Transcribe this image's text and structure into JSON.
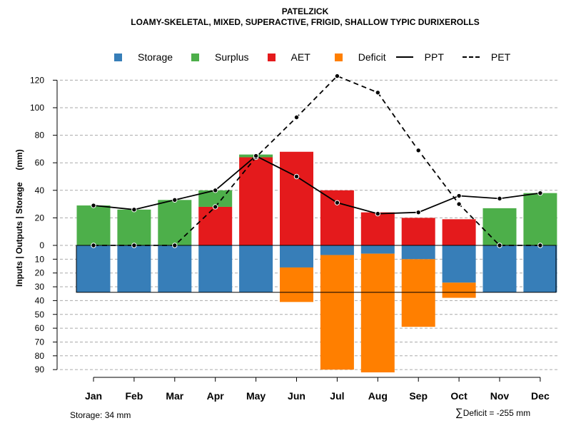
{
  "title": "PATELZICK",
  "subtitle": "LOAMY-SKELETAL, MIXED, SUPERACTIVE, FRIGID, SHALLOW TYPIC DURIXEROLLS",
  "legend": {
    "storage": "Storage",
    "surplus": "Surplus",
    "aet": "AET",
    "deficit": "Deficit",
    "ppt": "PPT",
    "pet": "PET"
  },
  "colors": {
    "storage": "#377EB8",
    "surplus": "#4DAF4A",
    "aet": "#E41A1C",
    "deficit": "#FF7F00"
  },
  "footer": {
    "storage_note": "Storage: 34 mm",
    "sigma": "∑",
    "deficit_note": "Deficit = -255 mm"
  },
  "chart_data": {
    "type": "bar",
    "title": "PATELZICK",
    "ylabel": "Inputs | Outputs | Storage     (mm)",
    "categories": [
      "Jan",
      "Feb",
      "Mar",
      "Apr",
      "May",
      "Jun",
      "Jul",
      "Aug",
      "Sep",
      "Oct",
      "Nov",
      "Dec"
    ],
    "upper_axis": {
      "ylim": [
        0,
        130
      ],
      "ticks": [
        0,
        20,
        40,
        60,
        80,
        100,
        120
      ]
    },
    "lower_axis": {
      "ylim": [
        0,
        90
      ],
      "ticks": [
        0,
        10,
        20,
        30,
        40,
        50,
        60,
        70,
        80,
        90
      ]
    },
    "storage_capacity": 34,
    "series": [
      {
        "name": "AET",
        "values": [
          0,
          0,
          0,
          28,
          64,
          68,
          40,
          24,
          20,
          19,
          0,
          0
        ]
      },
      {
        "name": "Surplus",
        "values": [
          29,
          26,
          33,
          12,
          2,
          0,
          0,
          0,
          0,
          0,
          27,
          38
        ]
      },
      {
        "name": "Storage",
        "values": [
          34,
          34,
          34,
          34,
          34,
          16,
          7,
          6,
          10,
          27,
          34,
          34
        ]
      },
      {
        "name": "Deficit",
        "values": [
          0,
          0,
          0,
          0,
          0,
          25,
          83,
          86,
          49,
          11,
          0,
          0
        ]
      },
      {
        "name": "PPT",
        "values": [
          29,
          26,
          33,
          40,
          65,
          50,
          31,
          23,
          24,
          36,
          34,
          38
        ]
      },
      {
        "name": "PET",
        "values": [
          0,
          0,
          0,
          28,
          64,
          93,
          123,
          111,
          69,
          30,
          0,
          0
        ]
      }
    ]
  }
}
